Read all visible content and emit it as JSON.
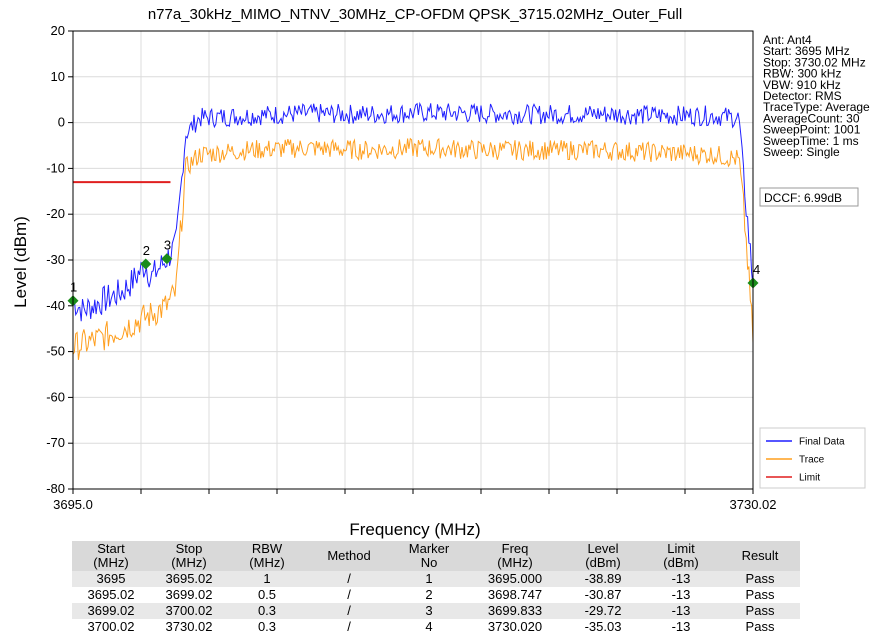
{
  "chart_data": {
    "type": "line",
    "title": "n77a_30kHz_MIMO_NTNV_30MHz_CP-OFDM QPSK_3715.02MHz_Outer_Full",
    "xlabel": "Frequency (MHz)",
    "ylabel": "Level (dBm)",
    "xlim": [
      3695.0,
      3730.02
    ],
    "ylim": [
      -80,
      20
    ],
    "x_tick_labels": [
      "3695.0",
      "3730.02"
    ],
    "y_ticks": [
      20,
      10,
      0,
      -10,
      -20,
      -30,
      -40,
      -50,
      -60,
      -70,
      -80
    ],
    "grid": true,
    "legend_position": "bottom-right",
    "info_box": [
      "Ant: Ant4",
      "Start: 3695 MHz",
      "Stop: 3730.02 MHz",
      "RBW: 300 kHz",
      "VBW: 910 kHz",
      "Detector: RMS",
      "TraceType: Average",
      "AverageCount: 30",
      "SweepPoint: 1001",
      "SweepTime: 1 ms",
      "Sweep: Single"
    ],
    "dccf_label": "DCCF: 6.99dB",
    "series": [
      {
        "name": "Final Data",
        "color": "#1f1fff",
        "points": [
          [
            3695.0,
            -38.89
          ],
          [
            3695.5,
            -41.0
          ],
          [
            3696.5,
            -39.0
          ],
          [
            3697.5,
            -37.0
          ],
          [
            3698.0,
            -35.0
          ],
          [
            3698.747,
            -30.87
          ],
          [
            3699.0,
            -34.0
          ],
          [
            3699.833,
            -29.72
          ],
          [
            3700.3,
            -27.0
          ],
          [
            3700.8,
            -2.5
          ],
          [
            3701.5,
            1.0
          ],
          [
            3704,
            1.5
          ],
          [
            3707,
            2.0
          ],
          [
            3710,
            1.8
          ],
          [
            3713,
            2.2
          ],
          [
            3716,
            2.0
          ],
          [
            3719,
            1.8
          ],
          [
            3722,
            1.9
          ],
          [
            3725,
            1.6
          ],
          [
            3728,
            1.5
          ],
          [
            3729.3,
            1.0
          ],
          [
            3729.6,
            -15.0
          ],
          [
            3730.02,
            -35.03
          ]
        ]
      },
      {
        "name": "Trace",
        "color": "#ff9f1f",
        "points": [
          [
            3695.0,
            -49.0
          ],
          [
            3696.5,
            -47.0
          ],
          [
            3698.0,
            -44.0
          ],
          [
            3699.0,
            -42.0
          ],
          [
            3699.833,
            -40.0
          ],
          [
            3700.3,
            -37.0
          ],
          [
            3700.8,
            -10.0
          ],
          [
            3701.5,
            -7.0
          ],
          [
            3704,
            -6.0
          ],
          [
            3707,
            -5.5
          ],
          [
            3710,
            -6.0
          ],
          [
            3713,
            -5.5
          ],
          [
            3716,
            -6.0
          ],
          [
            3719,
            -6.0
          ],
          [
            3722,
            -6.0
          ],
          [
            3725,
            -6.5
          ],
          [
            3728,
            -7.0
          ],
          [
            3729.3,
            -8.0
          ],
          [
            3729.6,
            -22.0
          ],
          [
            3730.02,
            -47.0
          ]
        ]
      },
      {
        "name": "Limit",
        "color": "#e01f1f",
        "points": [
          [
            3695.0,
            -13
          ],
          [
            3700.02,
            -13
          ]
        ]
      }
    ],
    "markers": [
      {
        "label": "1",
        "x": 3695.0,
        "y": -38.89
      },
      {
        "label": "2",
        "x": 3698.747,
        "y": -30.87
      },
      {
        "label": "3",
        "x": 3699.833,
        "y": -29.72
      },
      {
        "label": "4",
        "x": 3730.02,
        "y": -35.03
      }
    ],
    "marker_color": "#1a8c1a",
    "table": {
      "headers": [
        "Start\n(MHz)",
        "Stop\n(MHz)",
        "RBW\n(MHz)",
        "Method",
        "Marker\nNo",
        "Freq\n(MHz)",
        "Level\n(dBm)",
        "Limit\n(dBm)",
        "Result"
      ],
      "rows": [
        [
          "3695",
          "3695.02",
          "1",
          "/",
          "1",
          "3695.000",
          "-38.89",
          "-13",
          "Pass"
        ],
        [
          "3695.02",
          "3699.02",
          "0.5",
          "/",
          "2",
          "3698.747",
          "-30.87",
          "-13",
          "Pass"
        ],
        [
          "3699.02",
          "3700.02",
          "0.3",
          "/",
          "3",
          "3699.833",
          "-29.72",
          "-13",
          "Pass"
        ],
        [
          "3700.02",
          "3730.02",
          "0.3",
          "/",
          "4",
          "3730.020",
          "-35.03",
          "-13",
          "Pass"
        ]
      ]
    }
  }
}
